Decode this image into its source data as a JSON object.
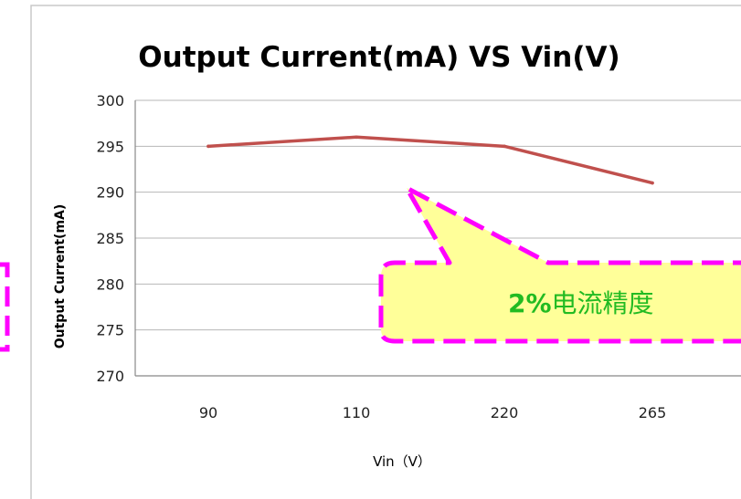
{
  "chart_data": {
    "type": "line",
    "title": "Output Current(mA)   VS  Vin(V)",
    "xlabel": "Vin（V）",
    "ylabel": "Output Current(mA)",
    "categories": [
      "90",
      "110",
      "220",
      "265"
    ],
    "series": [
      {
        "values": [
          295,
          296,
          295,
          291
        ],
        "color": "#c0504d"
      }
    ],
    "ylim": [
      270,
      300
    ],
    "yticks": [
      270,
      275,
      280,
      285,
      290,
      295,
      300
    ],
    "grid": "horizontal",
    "legend": "none"
  },
  "callout": {
    "text_bold": "2%",
    "text_cjk": "电流精度",
    "fill_color": "#ffff99",
    "border_color": "#ff00ff"
  },
  "colors": {
    "gridline": "#b7b7b7",
    "axis": "#888888",
    "frame": "#c8c8c8",
    "line": "#c0504d"
  }
}
